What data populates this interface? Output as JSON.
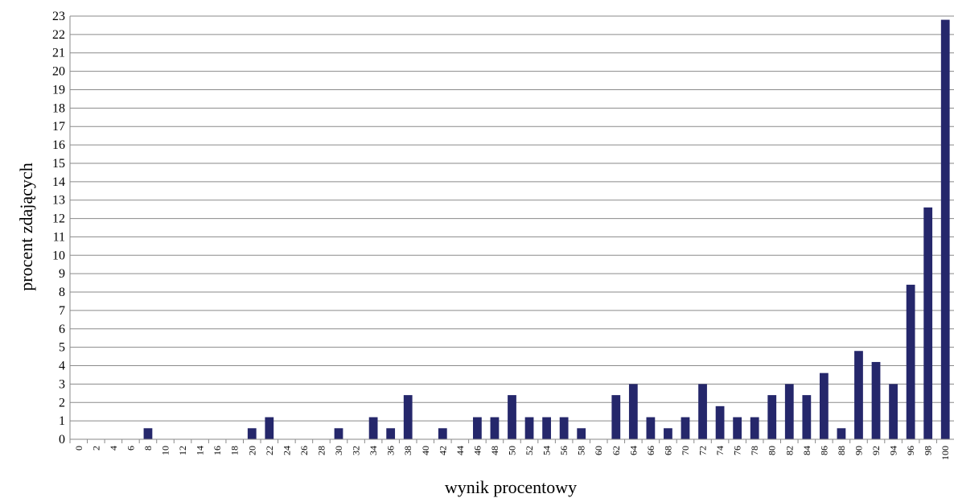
{
  "chart_data": {
    "type": "bar",
    "xlabel": "wynik procentowy",
    "ylabel": "procent zdających",
    "ylim": [
      0,
      23
    ],
    "yticks": [
      0,
      1,
      2,
      3,
      4,
      5,
      6,
      7,
      8,
      9,
      10,
      11,
      12,
      13,
      14,
      15,
      16,
      17,
      18,
      19,
      20,
      21,
      22,
      23
    ],
    "grid": true,
    "legend": "none",
    "bar_color": "#25276b",
    "categories": [
      "0",
      "2",
      "4",
      "6",
      "8",
      "10",
      "12",
      "14",
      "16",
      "18",
      "20",
      "22",
      "24",
      "26",
      "28",
      "30",
      "32",
      "34",
      "36",
      "38",
      "40",
      "42",
      "44",
      "46",
      "48",
      "50",
      "52",
      "54",
      "56",
      "58",
      "60",
      "62",
      "64",
      "66",
      "68",
      "70",
      "72",
      "74",
      "76",
      "78",
      "80",
      "82",
      "84",
      "86",
      "88",
      "90",
      "92",
      "94",
      "96",
      "98",
      "100"
    ],
    "values": [
      0,
      0,
      0,
      0,
      0.6,
      0,
      0,
      0,
      0,
      0,
      0.6,
      1.2,
      0,
      0,
      0,
      0.6,
      0,
      1.2,
      0.6,
      2.4,
      0,
      0.6,
      0,
      1.2,
      1.2,
      2.4,
      1.2,
      1.2,
      1.2,
      0.6,
      0,
      2.4,
      3.0,
      1.2,
      0.6,
      1.2,
      3.0,
      1.8,
      1.2,
      1.2,
      2.4,
      3.0,
      2.4,
      3.6,
      0.6,
      4.8,
      4.2,
      3.0,
      8.4,
      12.6,
      22.8
    ]
  }
}
